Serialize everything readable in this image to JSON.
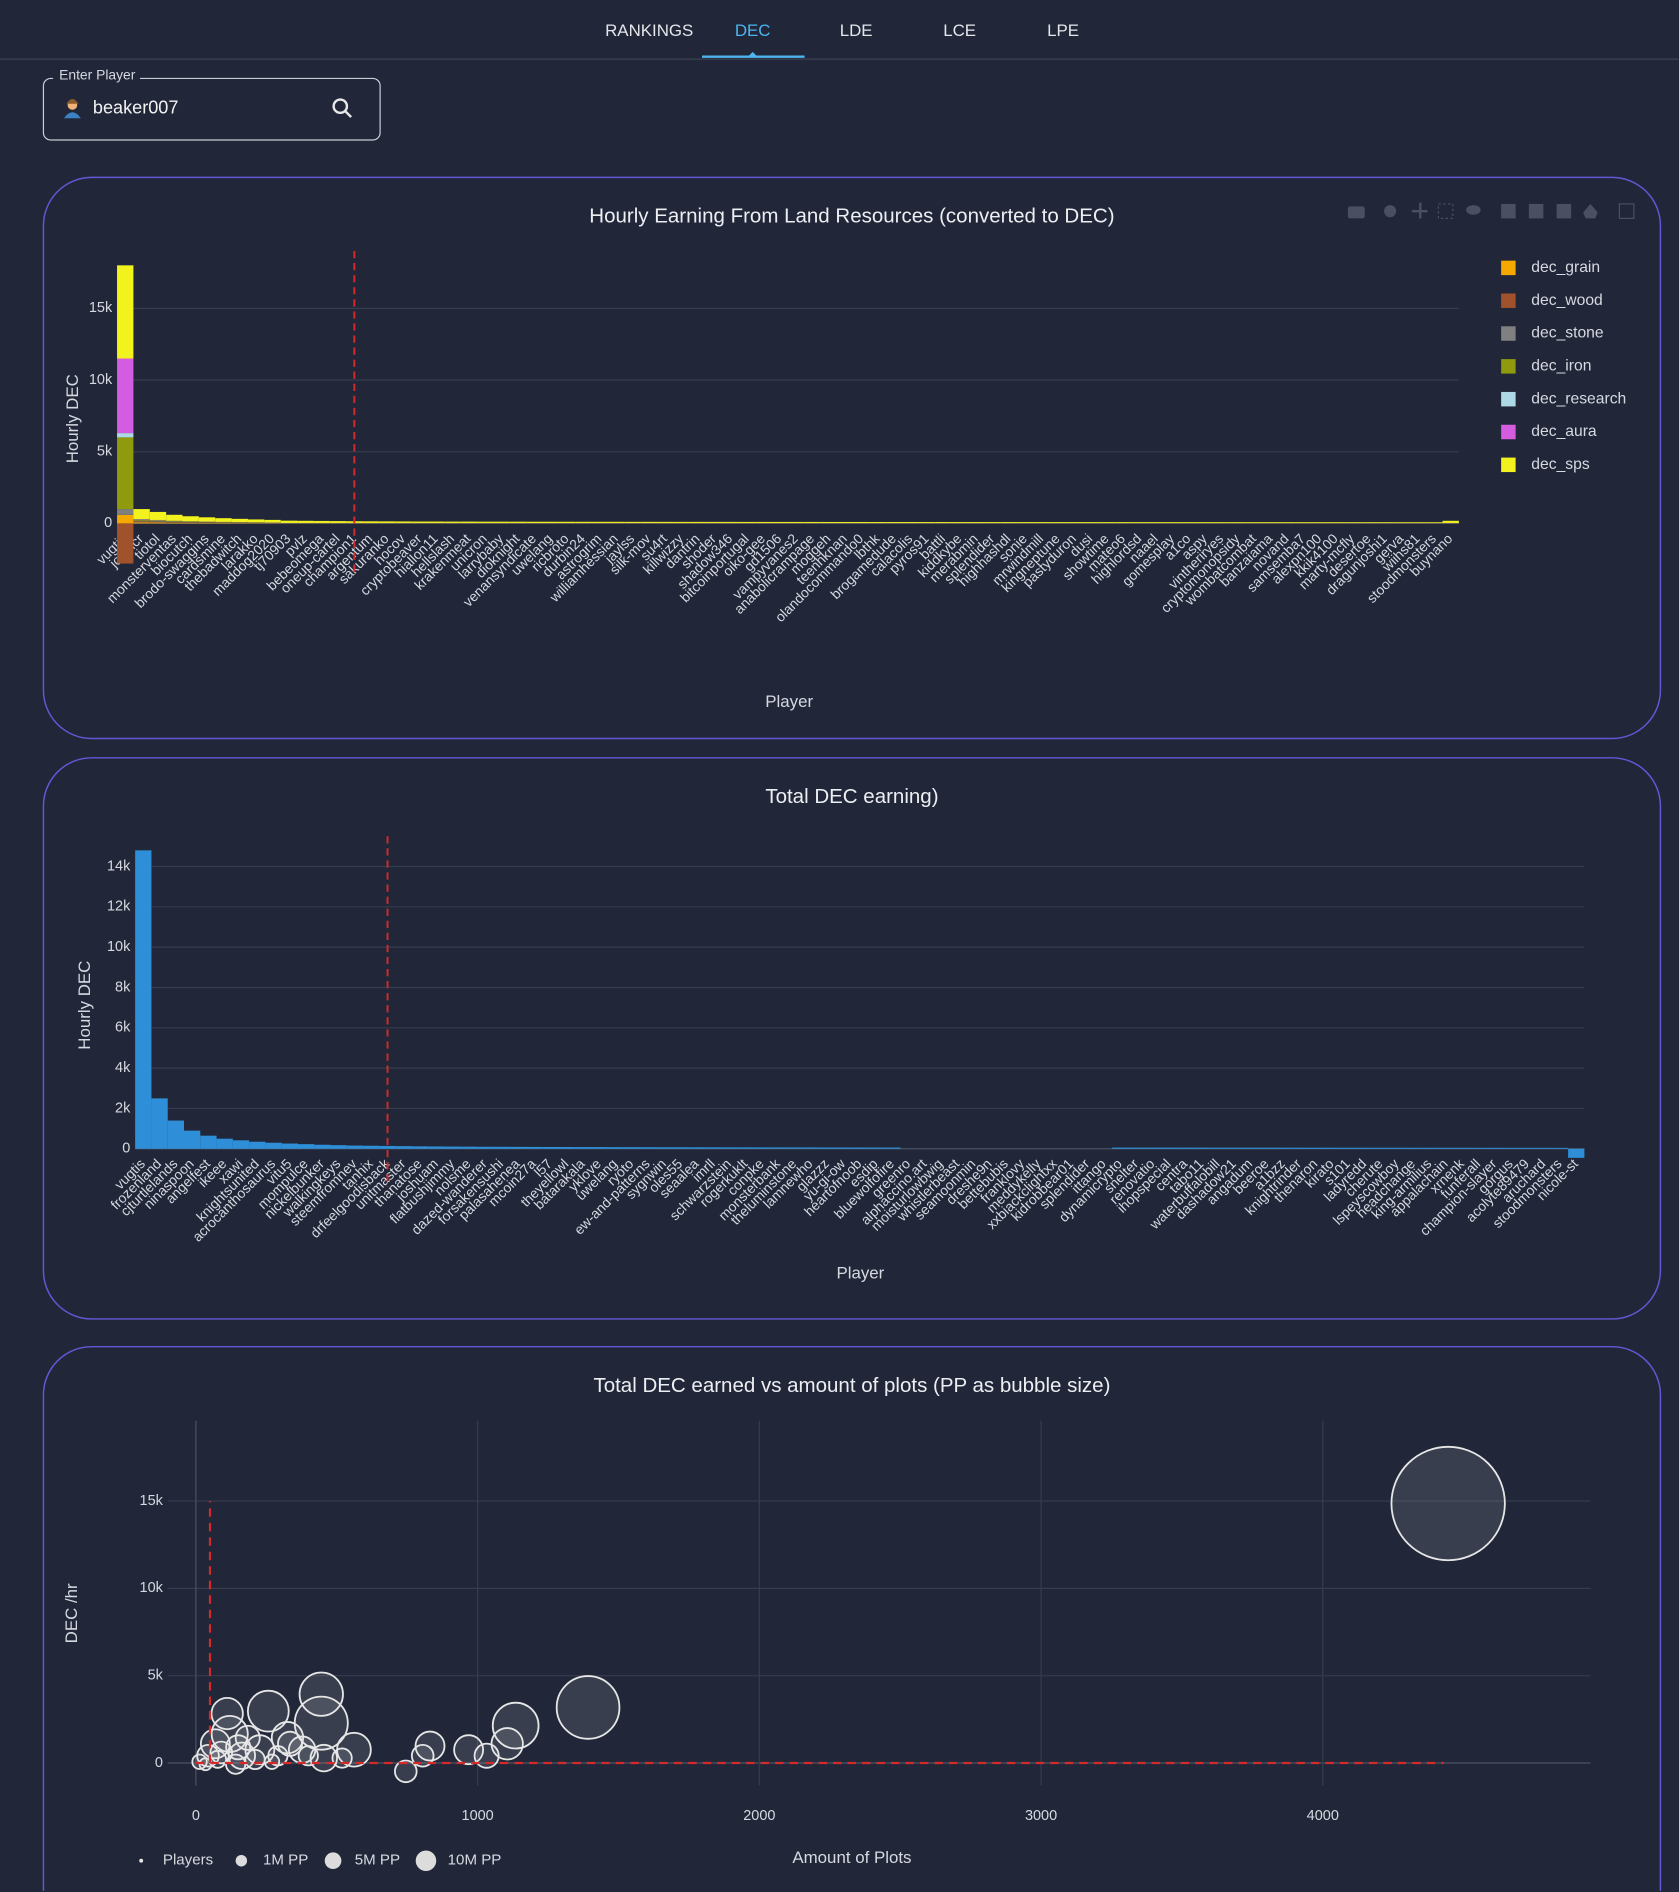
{
  "nav": {
    "tabs": [
      "RANKINGS",
      "DEC",
      "LDE",
      "LCE",
      "LPE"
    ],
    "active": 1
  },
  "search": {
    "label": "Enter Player",
    "value": "beaker007"
  },
  "chart_data": [
    {
      "type": "bar",
      "barmode": "relative",
      "title": "Hourly Earning From Land Resources (converted to DEC)",
      "x_label": "Player",
      "y_label": "Hourly DEC",
      "categories": [
        "vugtis",
        "jotzhcr",
        "tiotol",
        "monsterventas",
        "biocutch",
        "brodo-swaggins",
        "cardsmine",
        "thebadwitch",
        "larakko",
        "maddog2020",
        "tj70903",
        "pvlz",
        "bebeomega",
        "oneup-cartel",
        "champion1",
        "argentum",
        "sakuranko",
        "hocov",
        "cryptobeaver",
        "hiallon11",
        "hellslash",
        "krakenmeat",
        "unicron",
        "larrybaby",
        "dioknight",
        "venansyndicate",
        "uwelang",
        "ricbroto",
        "durbin24",
        "astrogrim",
        "williamhessian",
        "jaylss",
        "silk-mov",
        "su4rt",
        "killwizzy",
        "dantrin",
        "shoder",
        "shadow346",
        "bitcoinportugal",
        "oiko-gee",
        "gd1506",
        "vampyvanes2",
        "anabolicrampage",
        "moggeh",
        "teenhknan",
        "olandocommando0",
        "lbthk",
        "brogamedude",
        "calacolis",
        "pyros91",
        "battli",
        "kiddkybe",
        "merabmin",
        "splendider",
        "highhashdl",
        "sonie",
        "mrwindmill",
        "kingneptune",
        "pastyduron",
        "dusi",
        "showtime",
        "mateo6",
        "highlordsd",
        "naael",
        "gomesplay",
        "a1co",
        "aspy",
        "vintheriryes",
        "cryptomonopsidy",
        "wombatcombat",
        "banzaiama",
        "novand",
        "samsemba7",
        "alexpn100",
        "kkik4100",
        "marty-mcfly",
        "desertoe",
        "dragunjoshi1",
        "gerva",
        "wiihs81",
        "stoodmonsters",
        "buynano"
      ],
      "series": [
        {
          "name": "dec_grain",
          "color": "#f5a800",
          "values": [
            600,
            80,
            60,
            50,
            40,
            35,
            30,
            25,
            22,
            20,
            10,
            10,
            10,
            10,
            10,
            10,
            10,
            10,
            10,
            10,
            10,
            10,
            10,
            10,
            10,
            10,
            10,
            10,
            10,
            10,
            10,
            10,
            10,
            10,
            10,
            10,
            10,
            10,
            10,
            10,
            10,
            10,
            10,
            10,
            10,
            10,
            10,
            10,
            10,
            10,
            10,
            10,
            10,
            10,
            10,
            10,
            10,
            10,
            10,
            10,
            10,
            10,
            10,
            10,
            10,
            10,
            10,
            10,
            10,
            10,
            10,
            10,
            10,
            10,
            10,
            10,
            10,
            10,
            10,
            10,
            10,
            10
          ]
        },
        {
          "name": "dec_wood",
          "color": "#a0522d",
          "values": [
            -2800,
            60,
            50,
            40,
            30,
            25,
            20,
            18,
            15,
            12,
            8,
            8,
            8,
            8,
            8,
            8,
            8,
            8,
            8,
            8,
            8,
            8,
            8,
            8,
            8,
            8,
            8,
            8,
            8,
            8,
            8,
            8,
            8,
            8,
            8,
            8,
            8,
            8,
            8,
            8,
            8,
            8,
            8,
            8,
            8,
            8,
            8,
            8,
            8,
            8,
            8,
            8,
            8,
            8,
            8,
            8,
            8,
            8,
            8,
            8,
            8,
            8,
            8,
            8,
            8,
            8,
            8,
            8,
            8,
            8,
            8,
            8,
            8,
            8,
            8,
            8,
            8,
            8,
            8,
            8,
            8,
            8
          ]
        },
        {
          "name": "dec_stone",
          "color": "#808080",
          "values": [
            400,
            50,
            40,
            30,
            25,
            20,
            18,
            15,
            12,
            10,
            6,
            6,
            6,
            6,
            6,
            6,
            6,
            6,
            6,
            6,
            6,
            6,
            6,
            6,
            6,
            6,
            6,
            6,
            6,
            6,
            6,
            6,
            6,
            6,
            6,
            6,
            6,
            6,
            6,
            6,
            6,
            6,
            6,
            6,
            6,
            6,
            6,
            6,
            6,
            6,
            6,
            6,
            6,
            6,
            6,
            6,
            6,
            6,
            6,
            6,
            6,
            6,
            6,
            6,
            6,
            6,
            6,
            6,
            6,
            6,
            6,
            6,
            6,
            6,
            6,
            6,
            6,
            6,
            6,
            6,
            6,
            6
          ]
        },
        {
          "name": "dec_iron",
          "color": "#8f9a0c",
          "values": [
            5000,
            70,
            60,
            40,
            35,
            30,
            25,
            20,
            18,
            15,
            5,
            5,
            5,
            5,
            5,
            5,
            5,
            5,
            5,
            5,
            5,
            5,
            5,
            5,
            5,
            5,
            5,
            5,
            5,
            5,
            5,
            5,
            5,
            5,
            5,
            5,
            5,
            5,
            5,
            5,
            5,
            5,
            5,
            5,
            5,
            5,
            5,
            5,
            5,
            5,
            5,
            5,
            5,
            5,
            5,
            5,
            5,
            5,
            5,
            5,
            5,
            5,
            5,
            5,
            5,
            5,
            5,
            5,
            5,
            5,
            5,
            5,
            5,
            5,
            5,
            5,
            5,
            5,
            5,
            5,
            5,
            5
          ]
        },
        {
          "name": "dec_research",
          "color": "#add8e6",
          "values": [
            300,
            20,
            15,
            10,
            10,
            8,
            6,
            5,
            5,
            4,
            3,
            3,
            3,
            3,
            3,
            3,
            3,
            3,
            3,
            3,
            3,
            3,
            3,
            3,
            3,
            3,
            3,
            3,
            3,
            3,
            3,
            3,
            3,
            3,
            3,
            3,
            3,
            3,
            3,
            3,
            3,
            3,
            3,
            3,
            3,
            3,
            3,
            3,
            3,
            3,
            3,
            3,
            3,
            3,
            3,
            3,
            3,
            3,
            3,
            3,
            3,
            3,
            3,
            3,
            3,
            3,
            3,
            3,
            3,
            3,
            3,
            3,
            3,
            3,
            3,
            3,
            3,
            3,
            3,
            3,
            3,
            3
          ]
        },
        {
          "name": "dec_aura",
          "color": "#d35ce0",
          "values": [
            5200,
            20,
            15,
            10,
            10,
            8,
            6,
            5,
            5,
            4,
            0,
            0,
            0,
            0,
            0,
            0,
            0,
            0,
            0,
            0,
            0,
            0,
            0,
            0,
            0,
            0,
            0,
            0,
            0,
            0,
            0,
            0,
            0,
            0,
            0,
            0,
            0,
            0,
            0,
            0,
            0,
            0,
            0,
            0,
            0,
            0,
            0,
            0,
            0,
            0,
            0,
            0,
            0,
            0,
            0,
            0,
            0,
            0,
            0,
            0,
            0,
            0,
            0,
            0,
            0,
            0,
            0,
            0,
            0,
            0,
            0,
            0,
            0,
            0,
            0,
            0,
            0,
            0,
            0,
            0,
            0,
            0
          ]
        },
        {
          "name": "dec_sps",
          "color": "#f2f21e",
          "values": [
            6500,
            700,
            560,
            420,
            350,
            300,
            260,
            230,
            200,
            180,
            160,
            150,
            140,
            130,
            120,
            115,
            110,
            105,
            100,
            100,
            95,
            95,
            90,
            90,
            88,
            86,
            85,
            84,
            82,
            80,
            80,
            78,
            78,
            76,
            75,
            75,
            74,
            73,
            72,
            72,
            71,
            70,
            70,
            69,
            68,
            68,
            67,
            66,
            66,
            65,
            65,
            64,
            64,
            63,
            63,
            62,
            62,
            61,
            61,
            60,
            60,
            60,
            59,
            59,
            58,
            58,
            58,
            57,
            57,
            56,
            56,
            56,
            55,
            55,
            55,
            54,
            54,
            54,
            53,
            53,
            52,
            150
          ]
        }
      ],
      "ylim": [
        -3000,
        19000
      ],
      "yticks": [
        0,
        {
          "value": 5000,
          "label": "5k"
        },
        {
          "value": 10000,
          "label": "10k"
        },
        {
          "value": 15000,
          "label": "15k"
        }
      ],
      "grid": true,
      "legend": "top-right",
      "reference_line": {
        "category": "champion1",
        "color": "#d42a2a"
      }
    },
    {
      "type": "bar",
      "title": "Total DEC earning)",
      "x_label": "Player",
      "y_label": "Hourly DEC",
      "color": "#2e8fd8",
      "categories": [
        "vugtis",
        "frozenland",
        "cjturtlelands",
        "ninaspoon",
        "angelfest",
        "ikeee",
        "xawi",
        "knightsunited",
        "acrocanthosaurus",
        "vitu5",
        "mompulce",
        "nickelbunker",
        "walkingkeys",
        "steemfromnev",
        "tanhix",
        "drfeelgoodisback",
        "unitmaster",
        "thanatose",
        "joshuam",
        "flatbushjimmy",
        "nolsme",
        "dazed-wanderer",
        "forsakensushi",
        "palasahenea",
        "mcoin27a",
        "l57",
        "theyellowl",
        "batarakala",
        "yklove",
        "uwelang",
        "ryoto",
        "ew-and-patterns",
        "sygnwin",
        "oles55",
        "seaalea",
        "imrll",
        "schwarzstein",
        "rogerkuklt",
        "conpke",
        "monsterbank",
        "theluminstone",
        "lamnewho",
        "glazzz",
        "yu-gi-ow",
        "heartofnoob",
        "esdip",
        "bluewolfofire",
        "greenro",
        "alphaccino.art",
        "moisturlowbwig",
        "whistlerbeast",
        "seamoonmin",
        "dreshe9n",
        "bettebubis",
        "franklovy",
        "meddykelly",
        "xxbiackclightxx",
        "kidrobbear01",
        "splendider",
        "ittango",
        "dynamicrypto",
        "snelter",
        "renovatio",
        "ihopspecial",
        "centra",
        "tabo11",
        "waterbuffalobill",
        "dashadow21",
        "angadum",
        "beeroe",
        "a1bzz",
        "knightrinder",
        "thenaron",
        "kirato",
        "s101",
        "ladyredd",
        "cherute",
        "lspeyscowboy",
        "headchange",
        "king-armilius",
        "appalachain",
        "xrnenk",
        "funferall",
        "champion-slayer",
        "gorgus",
        "acolyte89479",
        "aruchard",
        "stoodmonsters",
        "nicole-st"
      ],
      "values": [
        14800,
        2500,
        1400,
        900,
        650,
        500,
        420,
        350,
        300,
        260,
        230,
        200,
        180,
        160,
        150,
        140,
        130,
        120,
        115,
        110,
        105,
        100,
        98,
        95,
        92,
        90,
        88,
        86,
        84,
        82,
        80,
        78,
        76,
        75,
        74,
        72,
        71,
        70,
        69,
        68,
        67,
        66,
        65,
        64,
        63,
        62,
        61,
        0,
        0,
        0,
        0,
        0,
        0,
        0,
        0,
        0,
        0,
        0,
        0,
        0,
        60,
        60,
        59,
        59,
        58,
        58,
        57,
        57,
        56,
        56,
        55,
        55,
        54,
        54,
        53,
        53,
        52,
        52,
        51,
        51,
        50,
        50,
        49,
        49,
        48,
        48,
        47,
        46,
        -450
      ],
      "ylim": [
        -1400,
        15500
      ],
      "yticks": [
        0,
        {
          "value": 2000,
          "label": "2k"
        },
        {
          "value": 4000,
          "label": "4k"
        },
        {
          "value": 6000,
          "label": "6k"
        },
        {
          "value": 8000,
          "label": "8k"
        },
        {
          "value": 10000,
          "label": "10k"
        },
        {
          "value": 12000,
          "label": "12k"
        },
        {
          "value": 14000,
          "label": "14k"
        }
      ],
      "grid": true,
      "reference_line": {
        "category": "drfeelgoodisback",
        "color": "#d42a2a"
      }
    },
    {
      "type": "scatter",
      "title": "Total DEC earned vs amount of plots (PP as bubble size)",
      "x_label": "Amount of Plots",
      "y_label": "DEC /hr",
      "series": [
        {
          "name": "Players",
          "color": "#e6e6e6",
          "x": [
            4445,
            1392,
            1135,
            1105,
            968,
            1032,
            831,
            805,
            745,
            561,
            445,
            445,
            454,
            257,
            325,
            111,
            120,
            69,
            163,
            227,
            377,
            334,
            43,
            13,
            34,
            77,
            141,
            184,
            291,
            399,
            519,
            270,
            90,
            150,
            210
          ],
          "values": [
            14860,
            3180,
            2140,
            1100,
            760,
            415,
            970,
            415,
            -480,
            760,
            2280,
            3940,
            280,
            2970,
            1450,
            2830,
            1660,
            1100,
            415,
            760,
            760,
            1100,
            415,
            70,
            -70,
            210,
            -70,
            1440,
            415,
            415,
            280,
            70,
            600,
            900,
            200
          ],
          "sizes": [
            30000000,
            9180000,
            4900000,
            2300000,
            1960000,
            1360000,
            1960000,
            1100000,
            1100000,
            2660000,
            6570000,
            4400000,
            1640000,
            3900000,
            2300000,
            2300000,
            3060000,
            1960000,
            1640000,
            1960000,
            1640000,
            1360000,
            1100000,
            490000,
            340000,
            670000,
            870000,
            1360000,
            870000,
            870000,
            870000,
            490000,
            1100000,
            1360000,
            870000
          ]
        }
      ],
      "size_legend": [
        {
          "value": 1000000,
          "label": "1M PP"
        },
        {
          "value": 5000000,
          "label": "5M PP"
        },
        {
          "value": 10000000,
          "label": "10M PP"
        }
      ],
      "xlim": [
        -100,
        4950
      ],
      "xticks": [
        0,
        1000,
        2000,
        3000,
        4000
      ],
      "ylim": [
        -1300,
        19600
      ],
      "yticks": [
        0,
        {
          "value": 5000,
          "label": "5k"
        },
        {
          "value": 10000,
          "label": "10k"
        },
        {
          "value": 15000,
          "label": "15k"
        }
      ],
      "grid": true,
      "legend": "bottom-left",
      "reference_lines": [
        {
          "x": [
            50,
            50
          ],
          "y": [
            0,
            15000
          ],
          "color": "#d42a2a"
        },
        {
          "x": [
            0,
            4430
          ],
          "y": [
            0,
            0
          ],
          "color": "#d42a2a"
        }
      ]
    }
  ]
}
